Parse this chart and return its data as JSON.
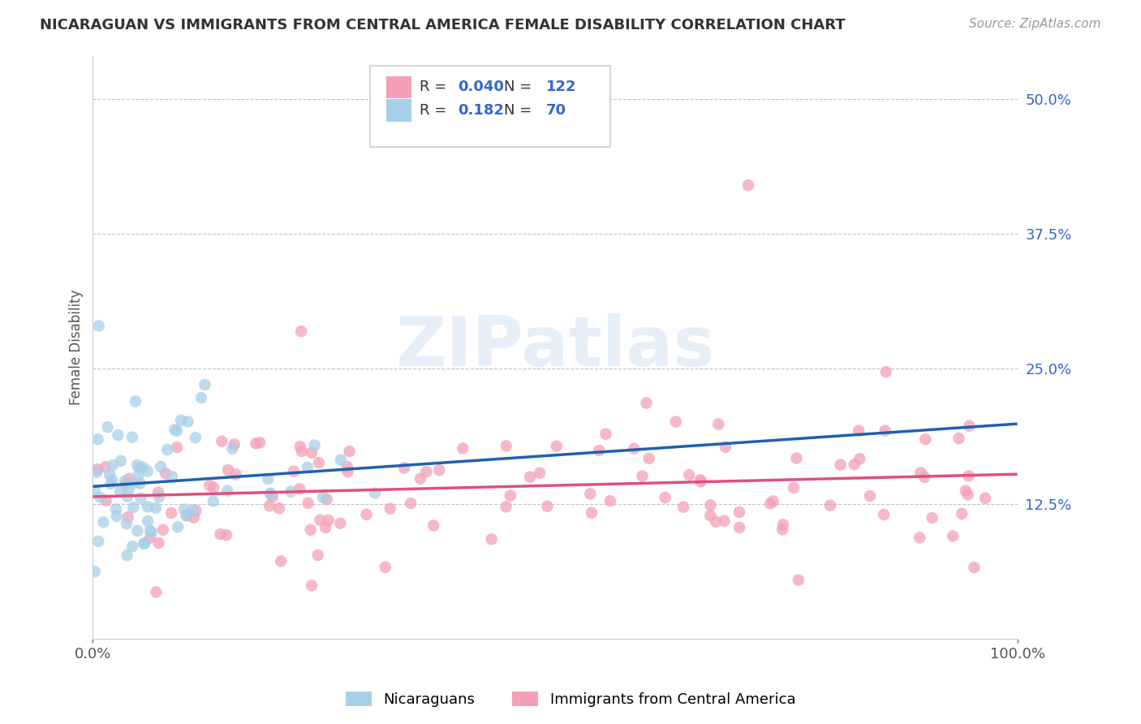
{
  "title": "NICARAGUAN VS IMMIGRANTS FROM CENTRAL AMERICA FEMALE DISABILITY CORRELATION CHART",
  "source": "Source: ZipAtlas.com",
  "ylabel": "Female Disability",
  "xlim": [
    0.0,
    1.0
  ],
  "ylim": [
    0.0,
    0.54
  ],
  "x_ticks": [
    0.0,
    1.0
  ],
  "x_tick_labels": [
    "0.0%",
    "100.0%"
  ],
  "y_ticks": [
    0.125,
    0.25,
    0.375,
    0.5
  ],
  "y_tick_labels": [
    "12.5%",
    "25.0%",
    "37.5%",
    "50.0%"
  ],
  "watermark": "ZIPatlas",
  "series1": {
    "name": "Nicaraguans",
    "color": "#a8cfe8",
    "line_color": "#2060b0",
    "R": 0.182,
    "N": 70
  },
  "series2": {
    "name": "Immigrants from Central America",
    "color": "#f4a0b8",
    "line_color": "#e0507a",
    "R": 0.04,
    "N": 122
  },
  "legend_text_color": "#3366cc",
  "legend_label_color": "#333333"
}
